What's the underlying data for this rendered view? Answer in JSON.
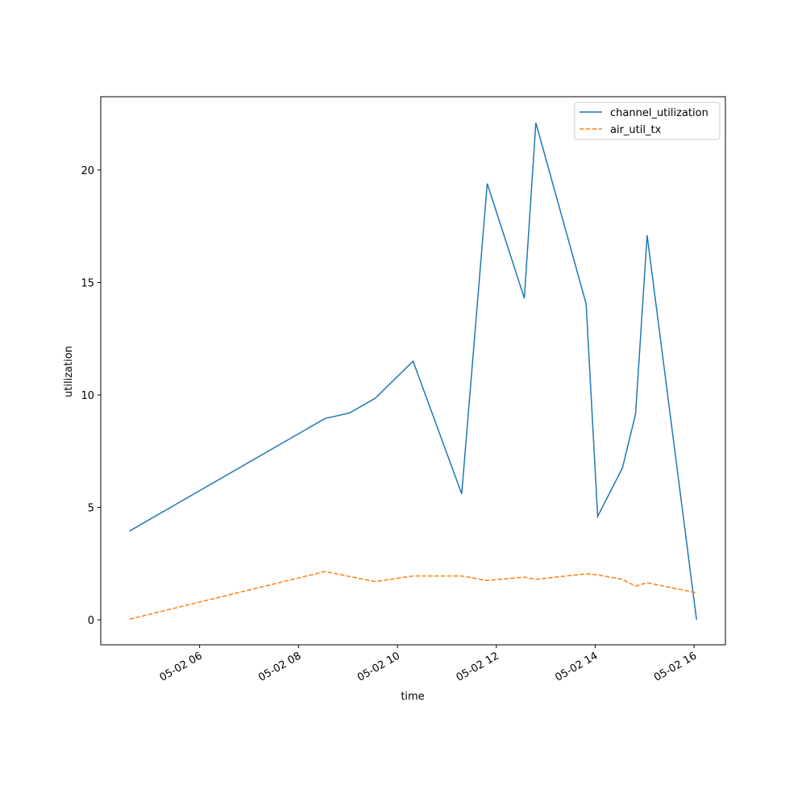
{
  "chart_data": {
    "type": "line",
    "x_label": "time",
    "y_label": "utilization",
    "x": [
      "05-02 04:35",
      "05-02 08:32",
      "05-02 09:02",
      "05-02 09:33",
      "05-02 10:19",
      "05-02 11:18",
      "05-02 11:49",
      "05-02 12:34",
      "05-02 12:48",
      "05-02 13:49",
      "05-02 14:03",
      "05-02 14:33",
      "05-02 14:49",
      "05-02 15:03",
      "05-02 16:03"
    ],
    "series": [
      {
        "name": "channel_utilization",
        "color": "#1f77b4",
        "dash": "solid",
        "values": [
          3.95,
          8.95,
          9.2,
          9.85,
          11.5,
          5.6,
          19.4,
          14.3,
          22.1,
          14.05,
          4.6,
          6.75,
          9.15,
          17.1,
          0
        ]
      },
      {
        "name": "air_util_tx",
        "color": "#ff7f0e",
        "dash": "dashed",
        "values": [
          0.03,
          2.15,
          1.93,
          1.7,
          1.95,
          1.95,
          1.75,
          1.9,
          1.8,
          2.05,
          2.0,
          1.8,
          1.5,
          1.65,
          1.2
        ]
      }
    ],
    "xlim": [
      "05-02 04:00",
      "05-02 16:38"
    ],
    "xticks": [
      {
        "value": "05-02 06:00",
        "label": "05-02 06"
      },
      {
        "value": "05-02 08:00",
        "label": "05-02 08"
      },
      {
        "value": "05-02 10:00",
        "label": "05-02 10"
      },
      {
        "value": "05-02 12:00",
        "label": "05-02 12"
      },
      {
        "value": "05-02 14:00",
        "label": "05-02 14"
      },
      {
        "value": "05-02 16:00",
        "label": "05-02 16"
      }
    ],
    "ylim": [
      -1.11,
      23.26
    ],
    "yticks": [
      0,
      5,
      10,
      15,
      20
    ],
    "legend": "upper right"
  }
}
